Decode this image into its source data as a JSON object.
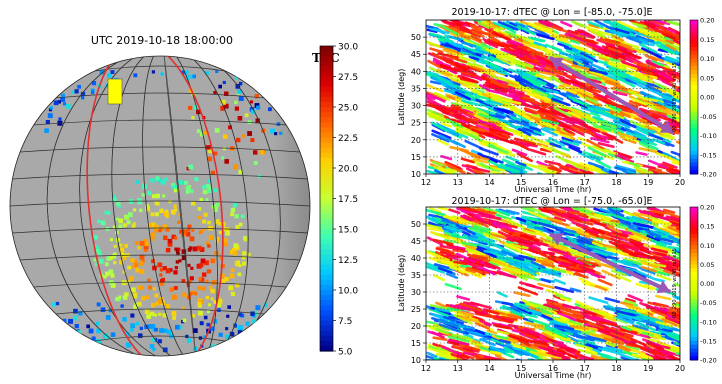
{
  "chart_data": [
    {
      "type": "heatmap",
      "title": "UTC 2019-10-18 18:00:00",
      "colorbar_label": "TEC",
      "colorbar_ticks": [
        "5.0",
        "7.5",
        "10.0",
        "12.5",
        "15.0",
        "17.5",
        "20.0",
        "22.5",
        "25.0",
        "27.5",
        "30.0"
      ],
      "clim": [
        5.0,
        30.0
      ],
      "colormap": [
        "#00008b",
        "#0050ff",
        "#00c8ff",
        "#40ffb0",
        "#c8ff30",
        "#ffd000",
        "#ff6000",
        "#e00000",
        "#800000"
      ],
      "globe_color": "#a9a9a9",
      "highlight_box_color": "#ffff00",
      "terminator_color": "#e03030"
    },
    {
      "type": "heatmap",
      "title": "2019-10-17: dTEC @  Lon = [-85.0, -75.0]E",
      "xlabel": "Universal Time (hr)",
      "ylabel": "Latitude (deg)",
      "xlim": [
        12,
        20
      ],
      "ylim": [
        10,
        55
      ],
      "xticks": [
        "12",
        "13",
        "14",
        "15",
        "16",
        "17",
        "18",
        "19",
        "20"
      ],
      "yticks": [
        "10",
        "15",
        "20",
        "25",
        "30",
        "35",
        "40",
        "45",
        "50"
      ],
      "colorbar_ticks": [
        "-0.20",
        "-0.15",
        "-0.10",
        "-0.05",
        "0.00",
        "0.05",
        "0.10",
        "0.15",
        "0.20"
      ],
      "clim": [
        -0.2,
        0.2
      ],
      "colorbar_side_label": "00_290_2019_ws40_rsl_e15",
      "arrow": {
        "from": [
          15.9,
          44
        ],
        "to": [
          19.8,
          22
        ],
        "color": "#9b59b6"
      },
      "colormap": [
        "#0000ff",
        "#00c8ff",
        "#00ff80",
        "#c8ff00",
        "#ffff00",
        "#ff8000",
        "#ff0000",
        "#ff00c0"
      ]
    },
    {
      "type": "heatmap",
      "title": "2019-10-17: dTEC @   Lon = [-75.0, -65.0]E",
      "xlabel": "Universal Time (hr)",
      "ylabel": "Latitude (deg)",
      "xlim": [
        12,
        20
      ],
      "ylim": [
        10,
        55
      ],
      "xticks": [
        "12",
        "13",
        "14",
        "15",
        "16",
        "17",
        "18",
        "19",
        "20"
      ],
      "yticks": [
        "10",
        "15",
        "20",
        "25",
        "30",
        "35",
        "40",
        "45",
        "50"
      ],
      "colorbar_ticks": [
        "-0.20",
        "-0.15",
        "-0.10",
        "-0.05",
        "0.00",
        "0.05",
        "0.10",
        "0.15",
        "0.20"
      ],
      "clim": [
        -0.2,
        0.2
      ],
      "colorbar_side_label": "00_290_2019_ws40_rsl_e15",
      "arrow": {
        "from": [
          15.9,
          47
        ],
        "to": [
          19.7,
          30
        ],
        "color": "#9b59b6"
      },
      "colormap": [
        "#0000ff",
        "#00c8ff",
        "#00ff80",
        "#c8ff00",
        "#ffff00",
        "#ff8000",
        "#ff0000",
        "#ff00c0"
      ]
    }
  ]
}
